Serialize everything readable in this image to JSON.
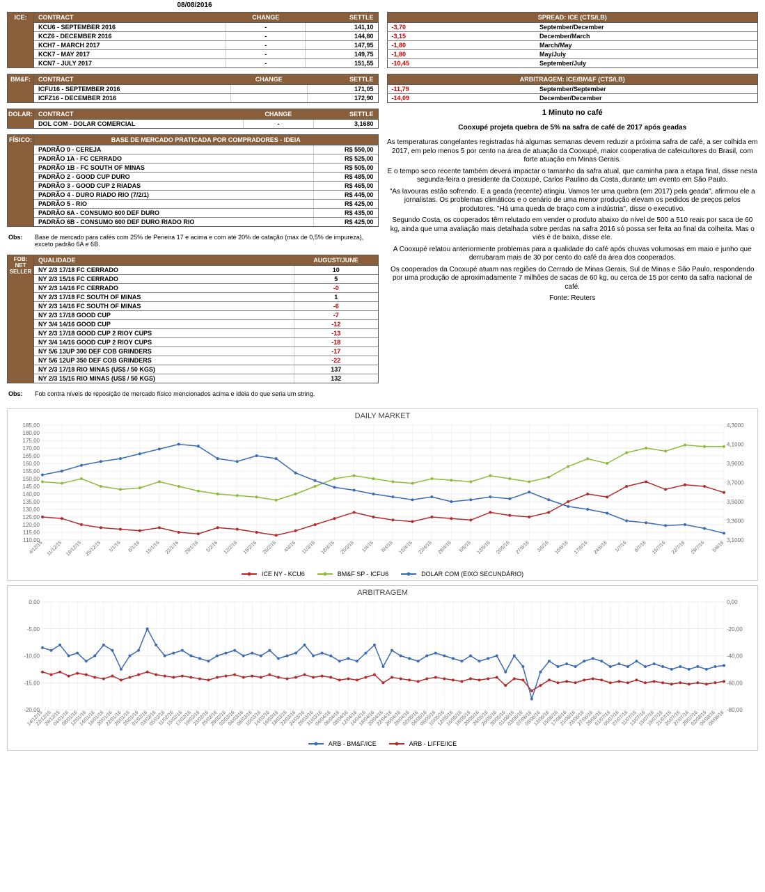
{
  "date": "08/08/2016",
  "ice": {
    "headers": [
      "CONTRACT",
      "CHANGE",
      "SETTLE"
    ],
    "rows": [
      {
        "contract": "KCU6 - SEPTEMBER 2016",
        "change": "-",
        "settle": "141,10"
      },
      {
        "contract": "KCZ6 - DECEMBER 2016",
        "change": "-",
        "settle": "144,80"
      },
      {
        "contract": "KCH7 - MARCH 2017",
        "change": "-",
        "settle": "147,95"
      },
      {
        "contract": "KCK7 - MAY 2017",
        "change": "-",
        "settle": "149,75"
      },
      {
        "contract": "KCN7 - JULY 2017",
        "change": "-",
        "settle": "151,55"
      }
    ]
  },
  "bmf": {
    "headers": [
      "CONTRACT",
      "CHANGE",
      "SETTLE"
    ],
    "rows": [
      {
        "contract": "ICFU16 - SEPTEMBER 2016",
        "change": "",
        "settle": "171,05"
      },
      {
        "contract": "ICFZ16 - DECEMBER 2016",
        "change": "",
        "settle": "172,90"
      }
    ]
  },
  "dolar": {
    "headers": [
      "CONTRACT",
      "CHANGE",
      "SETTLE"
    ],
    "rows": [
      {
        "contract": "DOL COM - DOLAR COMERCIAL",
        "change": "-",
        "settle": "3,1680"
      }
    ]
  },
  "spread": {
    "title": "SPREAD: ICE (CTS/LB)",
    "rows": [
      {
        "v": "-3,70",
        "lbl": "September/December"
      },
      {
        "v": "-3,15",
        "lbl": "December/March"
      },
      {
        "v": "-1,80",
        "lbl": "March/May"
      },
      {
        "v": "-1,80",
        "lbl": "May/July"
      },
      {
        "v": "-10,45",
        "lbl": "September/July"
      }
    ]
  },
  "arb": {
    "title": "ARBITRAGEM: ICE/BM&F (CTS/LB)",
    "rows": [
      {
        "v": "-11,79",
        "lbl": "September/September"
      },
      {
        "v": "-14,09",
        "lbl": "December/December"
      }
    ]
  },
  "fisico": {
    "title": "BASE DE MERCADO PRATICADA POR COMPRADORES - IDEIA",
    "rows": [
      {
        "n": "PADRÃO 0 - CEREJA",
        "p": "R$ 550,00"
      },
      {
        "n": "PADRÃO 1A - FC CERRADO",
        "p": "R$ 525,00"
      },
      {
        "n": "PADRÃO 1B - FC SOUTH OF MINAS",
        "p": "R$ 505,00"
      },
      {
        "n": "PADRÃO 2 - GOOD CUP DURO",
        "p": "R$ 485,00"
      },
      {
        "n": "PADRÃO 3 - GOOD CUP 2 RIADAS",
        "p": "R$ 465,00"
      },
      {
        "n": "PADRÃO 4 - DURO RIADO RIO (7/2/1)",
        "p": "R$ 445,00"
      },
      {
        "n": "PADRÃO 5 - RIO",
        "p": "R$ 425,00"
      },
      {
        "n": "PADRÃO 6A - CONSUMO 600 DEF DURO",
        "p": "R$ 435,00"
      },
      {
        "n": "PADRÃO 6B - CONSUMO 600 DEF DURO RIADO RIO",
        "p": "R$ 425,00"
      }
    ],
    "obs": "Base de mercado para cafés com 25% de Peneira 17 e acima e com até 20% de catação (max de 0,5% de impureza), exceto padrão 6A e 6B."
  },
  "fob": {
    "headers": [
      "QUALIDADE",
      "AUGUST/JUNE"
    ],
    "side": "FOB: NET SELLER",
    "rows": [
      {
        "n": "NY 2/3 17/18 FC CERRADO",
        "v": "10",
        "neg": false
      },
      {
        "n": "NY 2/3 15/16 FC CERRADO",
        "v": "5",
        "neg": false
      },
      {
        "n": "NY 2/3 14/16 FC CERRADO",
        "v": "-0",
        "neg": true
      },
      {
        "n": "NY 2/3 17/18 FC SOUTH OF MINAS",
        "v": "1",
        "neg": false
      },
      {
        "n": "NY 2/3 14/16 FC SOUTH OF MINAS",
        "v": "-6",
        "neg": true
      },
      {
        "n": "NY 2/3 17/18 GOOD CUP",
        "v": "-7",
        "neg": true
      },
      {
        "n": "NY 3/4 14/16 GOOD CUP",
        "v": "-12",
        "neg": true
      },
      {
        "n": "NY 2/3 17/18 GOOD CUP 2 RIOY CUPS",
        "v": "-13",
        "neg": true
      },
      {
        "n": "NY 3/4 14/16 GOOD CUP 2 RIOY CUPS",
        "v": "-18",
        "neg": true
      },
      {
        "n": "NY 5/6 13UP 300 DEF COB GRINDERS",
        "v": "-17",
        "neg": true
      },
      {
        "n": "NY 5/6 12UP 350 DEF COB GRINDERS",
        "v": "-22",
        "neg": true
      },
      {
        "n": "NY 2/3 17/18 RIO MINAS (US$ / 50 KGS)",
        "v": "137",
        "neg": false
      },
      {
        "n": "NY 2/3 15/16 RIO MINAS (US$ / 50 KGS)",
        "v": "132",
        "neg": false
      }
    ],
    "obs": "Fob contra níveis de reposição de mercado físico mencionados acima e ideia do que seria um string."
  },
  "article": {
    "title": "1 Minuto no café",
    "sub": "Cooxupé projeta quebra de 5% na safra de café de 2017 após geadas",
    "paras": [
      "As temperaturas congelantes registradas há algumas semanas devem reduzir a próxima safra de café, a ser colhida em 2017, em pelo menos 5 por cento na área de atuação da Cooxupé, maior cooperativa de cafeicultores do Brasil, com forte atuação em Minas Gerais.",
      "E o tempo seco recente também deverá impactar o tamanho da safra atual, que caminha para a etapa final, disse nesta segunda-feira o presidente da Cooxupé, Carlos Paulino da Costa, durante um evento em São Paulo.",
      "\"As lavouras estão sofrendo. E a geada (recente) atingiu. Vamos ter uma quebra (em 2017) pela geada\", afirmou ele a jornalistas. Os problemas climáticos e o cenário de uma menor produção elevam os pedidos de preços pelos produtores. \"Há uma queda de braço com a indústria\", disse o executivo.",
      "Segundo Costa, os cooperados têm relutado em vender o produto abaixo do nível de 500 a 510 reais por saca de 60 kg, ainda que uma avaliação mais detalhada sobre perdas na safra 2016 só possa ser feita ao final da colheita. Mas o viés é de baixa, disse ele.",
      "A Cooxupé relatou anteriormente problemas para a qualidade do café após chuvas volumosas em maio e junho que derrubaram mais de 30 por cento do café da área dos cooperados.",
      "Os cooperados da Cooxupé atuam nas regiões do Cerrado de Minas Gerais, Sul de Minas e São Paulo, respondendo por uma produção de aproximadamente 7 milhões de sacas de 60 kg, ou cerca de 15 por cento da safra nacional de café.",
      "Fonte: Reuters"
    ]
  },
  "chart1": {
    "title": "DAILY MARKET",
    "colors": {
      "red": "#b02b2b",
      "green": "#8fbb3c",
      "blue": "#3b6bb3",
      "grid": "#d9d9d9",
      "text": "#666"
    },
    "ylim_left": [
      110,
      185
    ],
    "ytick_left": [
      110,
      115,
      120,
      125,
      130,
      135,
      140,
      145,
      150,
      155,
      160,
      165,
      170,
      175,
      180,
      185
    ],
    "ylim_right": [
      3.1,
      4.3
    ],
    "ytick_right": [
      3.1,
      3.3,
      3.5,
      3.7,
      3.9,
      4.1,
      4.3
    ],
    "xlabels": [
      "4/12/15",
      "11/12/15",
      "18/12/15",
      "25/12/15",
      "1/1/16",
      "8/1/16",
      "15/1/16",
      "22/1/16",
      "29/1/16",
      "5/2/16",
      "12/2/16",
      "19/2/16",
      "26/2/16",
      "4/3/16",
      "11/3/16",
      "18/3/16",
      "25/3/16",
      "1/4/16",
      "8/4/16",
      "15/4/16",
      "22/4/16",
      "29/4/16",
      "6/5/16",
      "13/5/16",
      "20/5/16",
      "27/5/16",
      "3/6/16",
      "10/6/16",
      "17/6/16",
      "24/6/16",
      "1/7/16",
      "8/7/16",
      "15/7/16",
      "22/7/16",
      "29/7/16",
      "5/8/16"
    ],
    "legend": [
      "ICE NY - KCU6",
      "BM&F SP - ICFU6",
      "DOLAR COM (EIXO SECUNDÁRIO)"
    ],
    "series": {
      "red": [
        125,
        124,
        120,
        118,
        117,
        116,
        118,
        115,
        114,
        118,
        117,
        115,
        113,
        116,
        120,
        124,
        128,
        125,
        123,
        122,
        125,
        124,
        123,
        128,
        126,
        125,
        128,
        135,
        140,
        138,
        145,
        148,
        143,
        146,
        145,
        141
      ],
      "green": [
        148,
        147,
        150,
        145,
        143,
        144,
        148,
        145,
        142,
        140,
        139,
        138,
        136,
        140,
        145,
        150,
        152,
        150,
        148,
        147,
        150,
        149,
        148,
        152,
        150,
        148,
        151,
        158,
        163,
        160,
        167,
        170,
        168,
        172,
        171,
        171
      ],
      "blue": [
        3.78,
        3.82,
        3.88,
        3.92,
        3.95,
        4.0,
        4.05,
        4.1,
        4.08,
        3.95,
        3.92,
        3.98,
        3.95,
        3.8,
        3.72,
        3.65,
        3.62,
        3.58,
        3.55,
        3.52,
        3.55,
        3.5,
        3.52,
        3.55,
        3.53,
        3.6,
        3.52,
        3.45,
        3.42,
        3.38,
        3.3,
        3.28,
        3.25,
        3.26,
        3.22,
        3.17
      ]
    }
  },
  "chart2": {
    "title": "ARBITRAGEM",
    "colors": {
      "blue": "#3b6bb3",
      "red": "#b02b2b",
      "grid": "#d9d9d9",
      "text": "#666"
    },
    "ylim_left": [
      -20,
      0
    ],
    "ytick_left": [
      -20,
      -15,
      -10,
      -5,
      0
    ],
    "ylim_right": [
      -80,
      0
    ],
    "ytick_right": [
      -80,
      -60,
      -40,
      -20,
      0
    ],
    "xlabels": [
      "14/12/15",
      "22/12/15",
      "29/12/15",
      "04/01/16",
      "08/01/16",
      "12/01/16",
      "14/01/16",
      "18/01/16",
      "20/01/16",
      "22/01/16",
      "26/01/16",
      "28/01/16",
      "01/02/16",
      "03/02/16",
      "05/02/16",
      "11/02/16",
      "15/02/16",
      "17/02/16",
      "19/02/16",
      "23/02/16",
      "25/02/16",
      "29/02/16",
      "02/03/16",
      "04/03/16",
      "08/03/16",
      "10/03/16",
      "14/03/16",
      "16/03/16",
      "18/03/16",
      "22/03/16",
      "24/03/16",
      "29/03/16",
      "31/03/16",
      "04/04/16",
      "06/04/16",
      "08/04/16",
      "12/04/16",
      "14/04/16",
      "18/04/16",
      "20/04/16",
      "22/04/16",
      "26/04/16",
      "28/04/16",
      "02/05/16",
      "04/05/16",
      "06/05/16",
      "10/05/16",
      "12/05/16",
      "16/05/16",
      "18/05/16",
      "20/05/16",
      "24/05/16",
      "26/05/16",
      "30/05/16",
      "01/06/16",
      "03/06/16",
      "07/06/16",
      "09/06/16",
      "13/06/16",
      "15/06/16",
      "17/06/16",
      "21/06/16",
      "23/06/16",
      "27/06/16",
      "29/06/16",
      "01/07/16",
      "05/07/16",
      "07/07/16",
      "11/07/16",
      "13/07/16",
      "15/07/16",
      "19/07/16",
      "21/07/16",
      "25/07/16",
      "27/07/16",
      "29/07/16",
      "02/08/16",
      "04/08/16",
      "08/08/16"
    ],
    "legend": [
      "ARB - BM&F/ICE",
      "ARB - LIFFE/ICE"
    ],
    "series": {
      "blue": [
        -8.5,
        -9,
        -8,
        -10,
        -9.5,
        -11,
        -10,
        -8,
        -9,
        -12.5,
        -10,
        -9,
        -5,
        -8,
        -10,
        -9.5,
        -9,
        -10,
        -10.5,
        -11,
        -10,
        -9.5,
        -9,
        -10,
        -9.5,
        -10,
        -9,
        -10.5,
        -10,
        -9.5,
        -8,
        -10,
        -9.5,
        -10,
        -11,
        -10.5,
        -11,
        -9.5,
        -8,
        -12,
        -9,
        -10,
        -10.5,
        -11,
        -10,
        -9.5,
        -10,
        -10.5,
        -11,
        -10,
        -11,
        -10.5,
        -10,
        -13,
        -10,
        -12,
        -18,
        -13,
        -11,
        -12,
        -11.5,
        -12,
        -11,
        -10.5,
        -11,
        -12,
        -11.5,
        -12,
        -11,
        -12,
        -11.5,
        -12,
        -12.5,
        -12,
        -12.5,
        -12,
        -12.5,
        -12,
        -11.8
      ],
      "red": [
        -52,
        -54,
        -52,
        -55,
        -53,
        -54,
        -56,
        -57,
        -55,
        -58,
        -56,
        -54,
        -52,
        -54,
        -55,
        -56,
        -55,
        -56,
        -57,
        -58,
        -56,
        -55,
        -54,
        -56,
        -55,
        -56,
        -54,
        -56,
        -57,
        -56,
        -54,
        -56,
        -55,
        -56,
        -58,
        -57,
        -58,
        -56,
        -54,
        -60,
        -56,
        -57,
        -58,
        -59,
        -57,
        -56,
        -57,
        -58,
        -59,
        -57,
        -58,
        -57,
        -56,
        -62,
        -57,
        -58,
        -66,
        -62,
        -58,
        -60,
        -59,
        -60,
        -58,
        -57,
        -58,
        -60,
        -59,
        -60,
        -58,
        -60,
        -59,
        -60,
        -61,
        -60,
        -61,
        -60,
        -61,
        -60,
        -59
      ]
    }
  }
}
